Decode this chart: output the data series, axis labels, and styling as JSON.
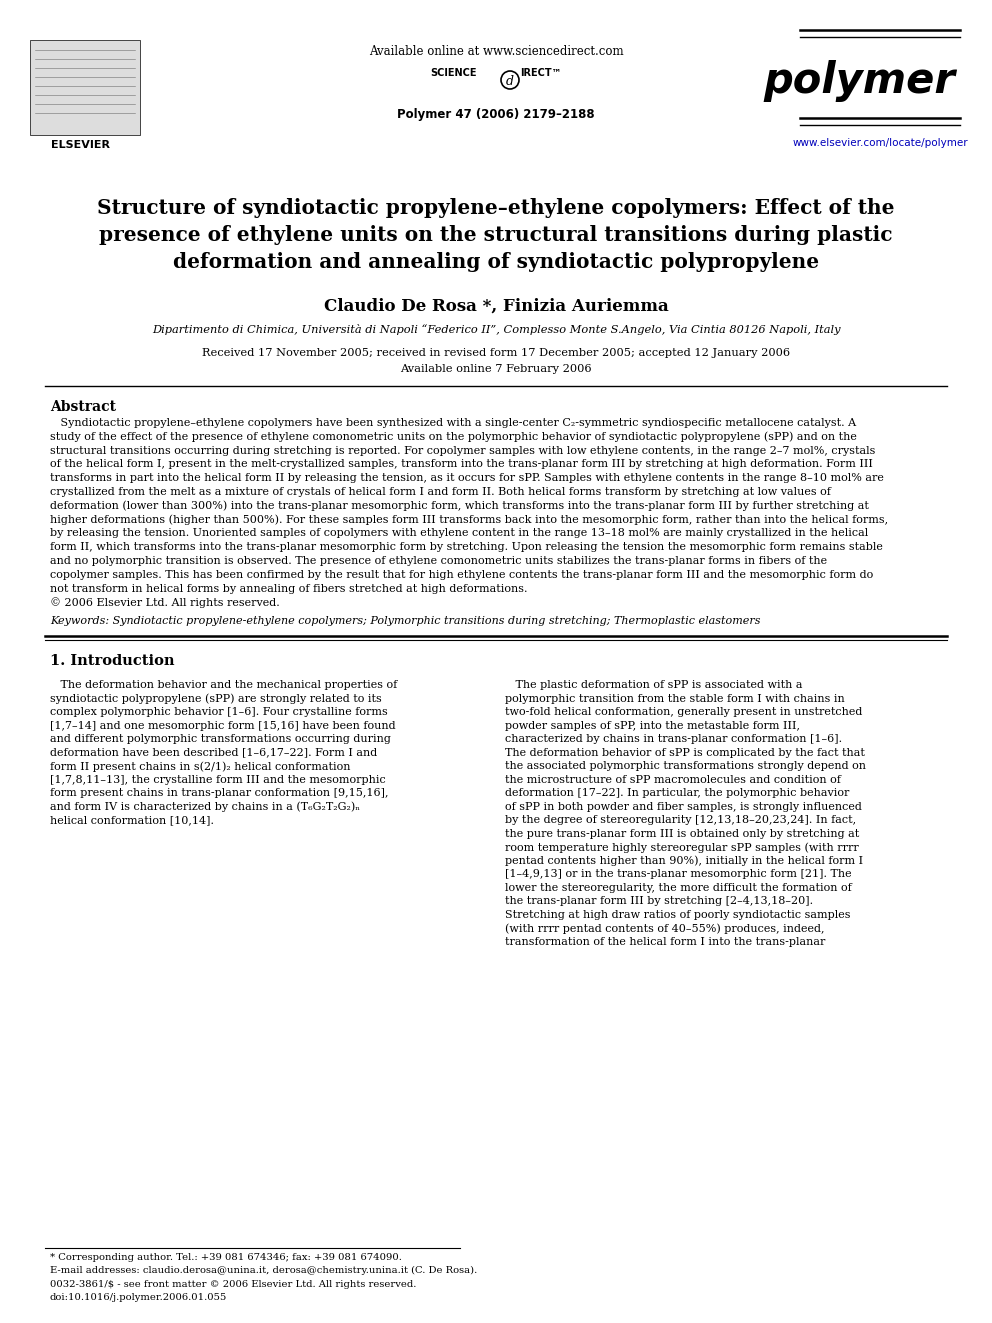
{
  "page_bg": "#ffffff",
  "header_available_online": "Available online at www.sciencedirect.com",
  "journal_name": "polymer",
  "journal_ref": "Polymer 47 (2006) 2179–2188",
  "journal_url": "www.elsevier.com/locate/polymer",
  "elsevier_text": "ELSEVIER",
  "title": "Structure of syndiotactic propylene–ethylene copolymers: Effect of the\npresence of ethylene units on the structural transitions during plastic\ndeformation and annealing of syndiotactic polypropylene",
  "authors": "Claudio De Rosa *, Finizia Auriemma",
  "affiliation": "Dipartimento di Chimica, Università di Napoli “Federico II”, Complesso Monte S.Angelo, Via Cintia 80126 Napoli, Italy",
  "received": "Received 17 November 2005; received in revised form 17 December 2005; accepted 12 January 2006",
  "available": "Available online 7 February 2006",
  "abstract_title": "Abstract",
  "keywords": "Keywords: Syndiotactic propylene-ethylene copolymers; Polymorphic transitions during stretching; Thermoplastic elastomers",
  "section1_title": "1. Introduction",
  "footnote_star": "* Corresponding author. Tel.: +39 081 674346; fax: +39 081 674090.",
  "footnote_email": "E-mail addresses: claudio.derosa@unina.it, derosa@chemistry.unina.it (C. De Rosa).",
  "footnote_issn": "0032-3861/$ - see front matter © 2006 Elsevier Ltd. All rights reserved.",
  "footnote_doi": "doi:10.1016/j.polymer.2006.01.055"
}
